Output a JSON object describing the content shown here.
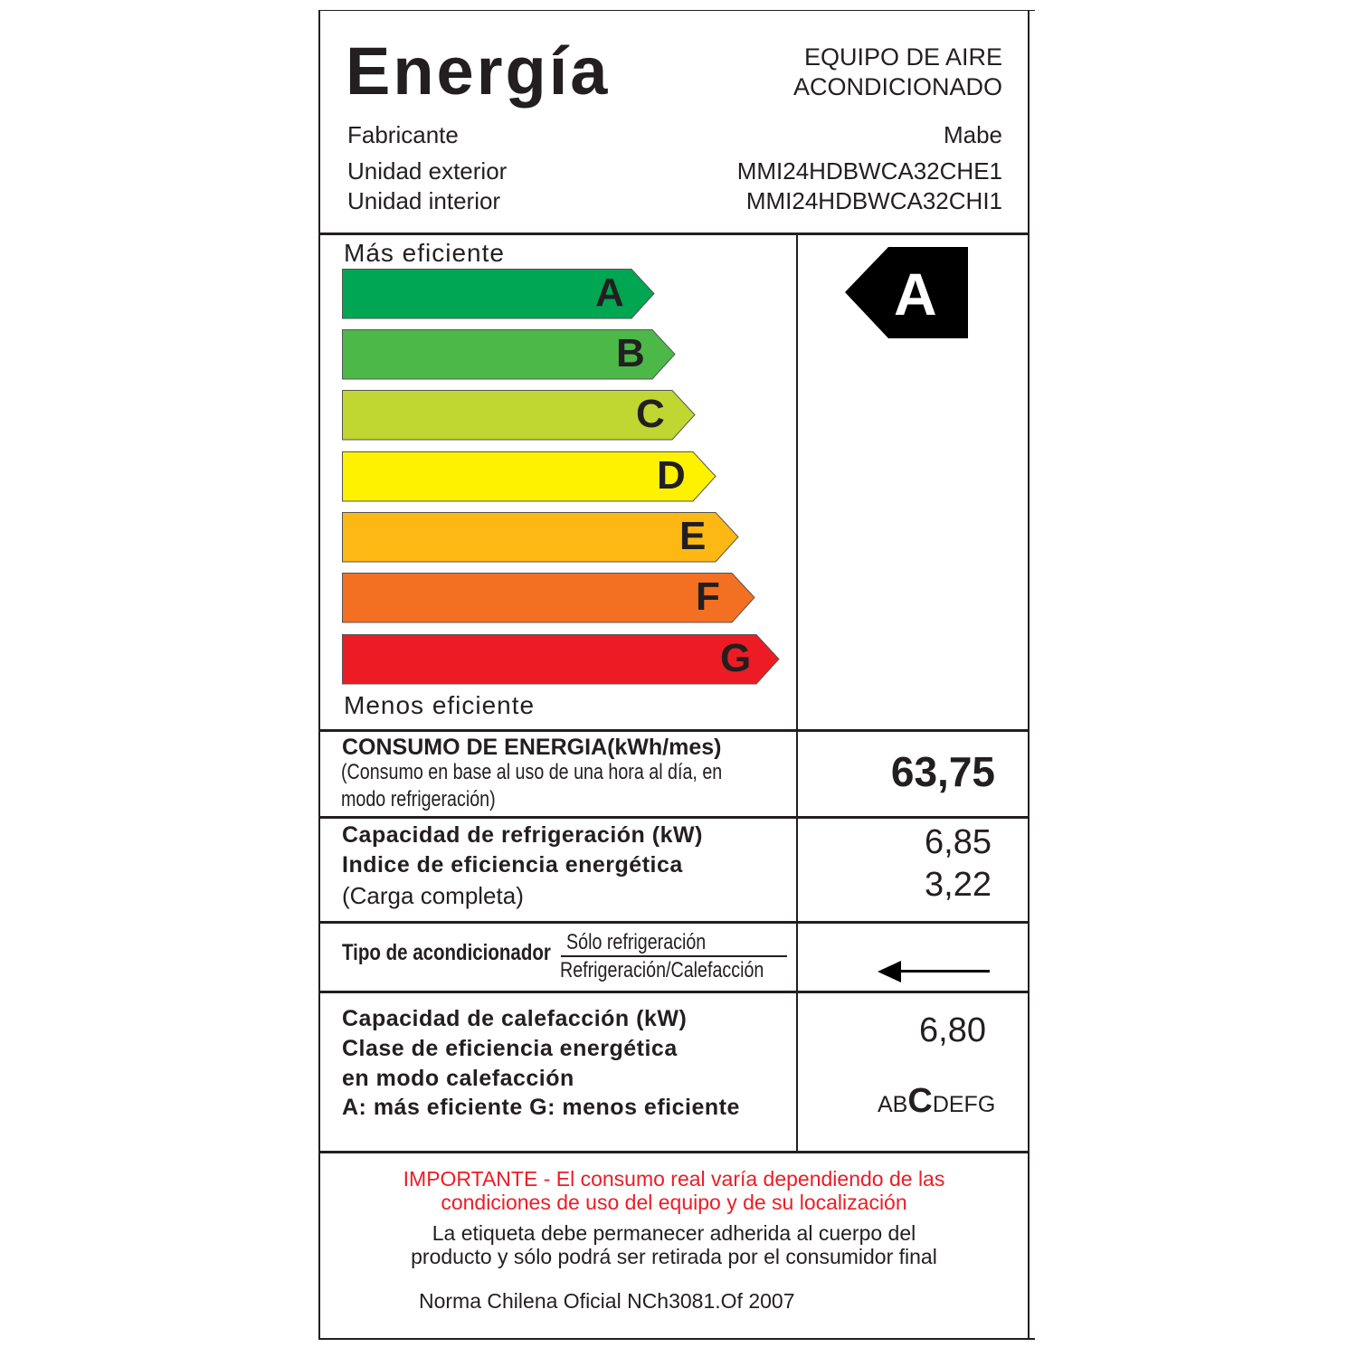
{
  "header": {
    "title": "Energía",
    "product_type_line1": "EQUIPO DE AIRE",
    "product_type_line2": "ACONDICIONADO",
    "rows": [
      {
        "label": "Fabricante",
        "value": "Mabe"
      },
      {
        "label": "Unidad exterior",
        "value": "MMI24HDBWCA32CHE1"
      },
      {
        "label": "Unidad interior",
        "value": "MMI24HDBWCA32CHI1"
      }
    ]
  },
  "scale": {
    "top_label": "Más eficiente",
    "bottom_label": "Menos eficiente",
    "classes": [
      {
        "letter": "A",
        "color": "#00a651"
      },
      {
        "letter": "B",
        "color": "#4cb848"
      },
      {
        "letter": "C",
        "color": "#bfd730"
      },
      {
        "letter": "D",
        "color": "#fff200"
      },
      {
        "letter": "E",
        "color": "#fdb813"
      },
      {
        "letter": "F",
        "color": "#f36f21"
      },
      {
        "letter": "G",
        "color": "#ed1c24"
      }
    ],
    "rating": "A"
  },
  "consumption": {
    "title": "CONSUMO DE ENERGIA(kWh/mes)",
    "note_line1": "(Consumo en base al uso de una hora al día, en",
    "note_line2": "modo refrigeración)",
    "value": "63,75"
  },
  "cooling": {
    "line1": "Capacidad de  refrigeración (kW)",
    "line2": "Indice de eficiencia energética",
    "line3": "(Carga completa)",
    "capacity": "6,85",
    "index": "3,22"
  },
  "type": {
    "label": "Tipo de acondicionador",
    "option1": "Sólo  refrigeración",
    "option2": "Refrigeración/Calefacción",
    "selected": "Refrigeración/Calefacción"
  },
  "heating": {
    "line1": "Capacidad de calefacción (kW)",
    "line2": "Clase de eficiencia  energética",
    "line3": "en modo calefacción",
    "line4": "A: más eficiente G: menos eficiente",
    "capacity": "6,80",
    "class_before": "AB",
    "class_selected": "C",
    "class_after": "DEFG"
  },
  "footer": {
    "important_line1": "IMPORTANTE - El consumo real varía dependiendo de las",
    "important_line2": "condiciones de uso del equipo y de su localización",
    "note_line1": "La etiqueta debe permanecer adherida al cuerpo del",
    "note_line2": "producto y sólo podrá ser retirada por el consumidor final",
    "norm": "Norma Chilena Oficial NCh3081.Of 2007",
    "important_color": "#ed1c24"
  }
}
